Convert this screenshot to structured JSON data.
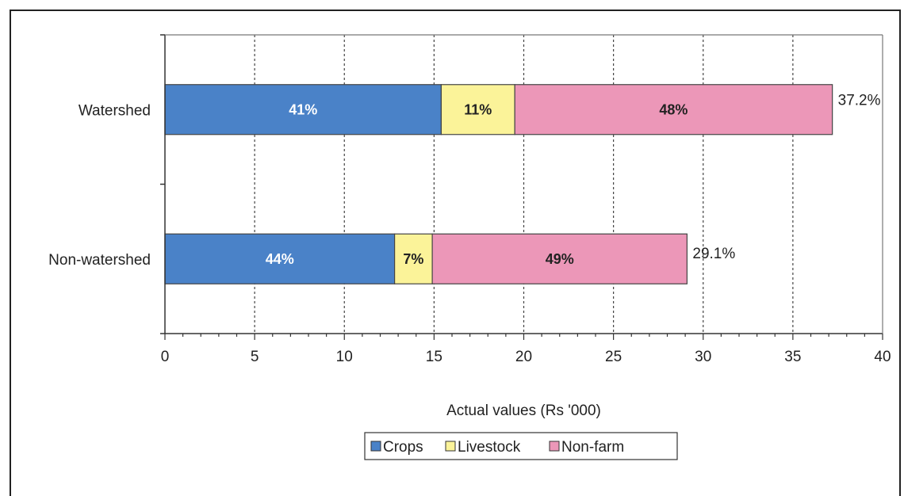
{
  "chart_data": {
    "type": "bar",
    "orientation": "horizontal",
    "stacked": true,
    "categories": [
      "Watershed",
      "Non-watershed"
    ],
    "series": [
      {
        "name": "Crops",
        "values": [
          15.4,
          12.8
        ],
        "labels": [
          "41%",
          "44%"
        ],
        "color": "#4a82c8",
        "label_color": "#ffffff"
      },
      {
        "name": "Livestock",
        "values": [
          4.1,
          2.1
        ],
        "labels": [
          "11%",
          "7%"
        ],
        "color": "#fbf399",
        "label_color": "#222222"
      },
      {
        "name": "Non-farm",
        "values": [
          17.7,
          14.2
        ],
        "labels": [
          "48%",
          "49%"
        ],
        "color": "#ec97b8",
        "label_color": "#222222"
      }
    ],
    "totals": [
      "37.2%",
      "29.1%"
    ],
    "xlabel": "Actual values (Rs '000)",
    "xlim": [
      0,
      40
    ],
    "xticks": [
      0,
      5,
      10,
      15,
      20,
      25,
      30,
      35,
      40
    ],
    "grid": true,
    "legend_position": "bottom"
  }
}
